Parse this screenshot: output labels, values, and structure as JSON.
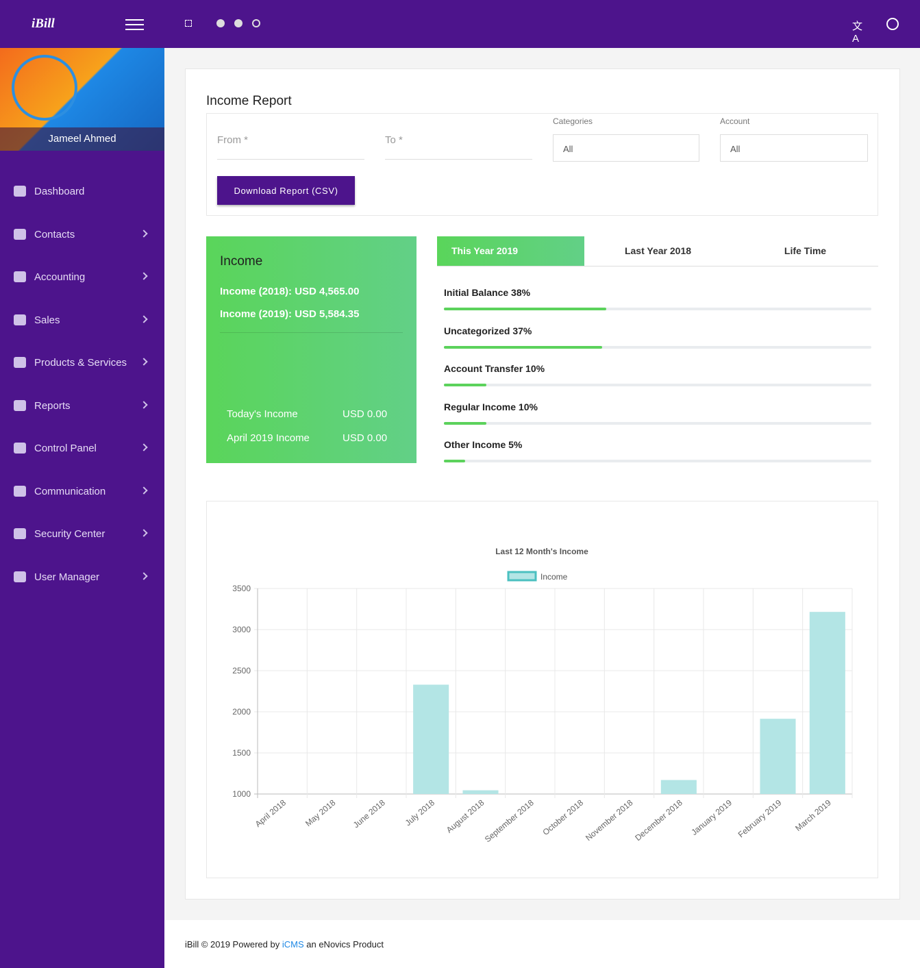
{
  "header": {
    "logo": "iBill"
  },
  "sidebar": {
    "user_name": "Jameel Ahmed",
    "menu": [
      "Dashboard",
      "Contacts",
      "Accounting",
      "Sales",
      "Products & Services",
      "Reports",
      "Control Panel",
      "Communication",
      "Security Center",
      "User Manager"
    ]
  },
  "report": {
    "title": "Income Report",
    "from_label": "From *",
    "to_label": "To *",
    "categories_label": "Categories",
    "categories_value": "All",
    "account_label": "Account",
    "account_value": "All",
    "download_button": "Download Report (CSV)"
  },
  "income_card": {
    "title": "Income",
    "line_2018": "Income (2018): USD 4,565.00",
    "line_2019": "Income (2019): USD 5,584.35",
    "today_label": "Today's Income",
    "today_value": "USD 0.00",
    "month_label": "April 2019 Income",
    "month_value": "USD 0.00"
  },
  "tabs": [
    "This Year 2019",
    "Last Year 2018",
    "Life Time"
  ],
  "breakdown": [
    {
      "label": "Initial Balance 38%",
      "value": 38
    },
    {
      "label": "Uncategorized 37%",
      "value": 37
    },
    {
      "label": "Account Transfer 10%",
      "value": 10
    },
    {
      "label": "Regular Income 10%",
      "value": 10
    },
    {
      "label": "Other Income 5%",
      "value": 5
    }
  ],
  "chart_data": {
    "type": "bar",
    "title": "Last 12 Month's Income",
    "categories": [
      "April 2018",
      "May 2018",
      "June 2018",
      "July 2018",
      "August 2018",
      "September 2018",
      "October 2018",
      "November 2018",
      "December 2018",
      "January 2019",
      "February 2019",
      "March 2019"
    ],
    "series": [
      {
        "name": "Income",
        "color": "#b3e5e5",
        "border": "#4bc0c0",
        "values": [
          null,
          null,
          null,
          2330,
          1045,
          null,
          null,
          null,
          1170,
          null,
          1915,
          3215
        ]
      }
    ],
    "ylim": [
      1000,
      3500
    ],
    "yticks": [
      1000,
      1500,
      2000,
      2500,
      3000,
      3500
    ],
    "grid": true
  },
  "footer": {
    "text_before": "iBill © 2019 Powered by",
    "link": "iCMS",
    "text_after": "an eNovics Product"
  }
}
